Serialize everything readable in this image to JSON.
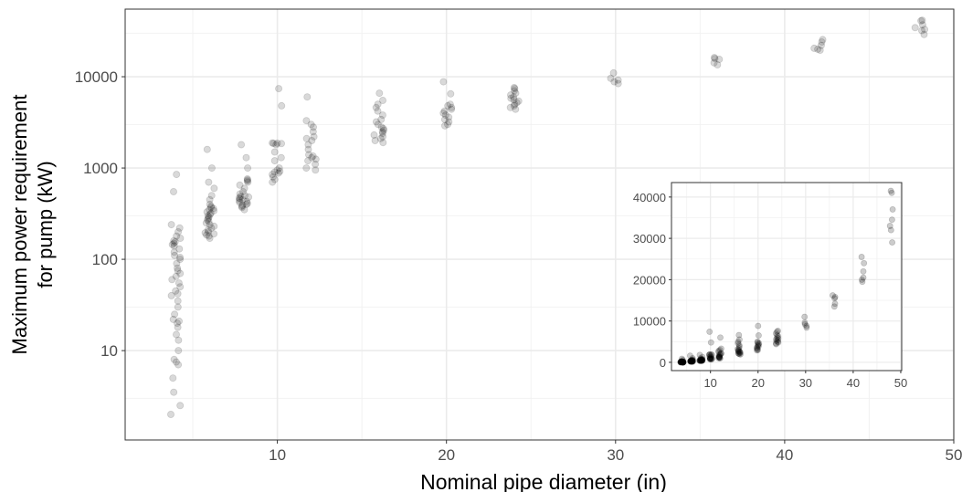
{
  "chart_data": [
    {
      "type": "scatter",
      "title": "",
      "xlabel": "Nominal pipe diameter (in)",
      "ylabel_lines": [
        "Maximum power requirement",
        "for pump (kW)"
      ],
      "xlim": [
        1,
        50
      ],
      "ylim": [
        1.05,
        55000
      ],
      "y_scale": "log",
      "x_ticks": [
        10,
        20,
        30,
        40,
        50
      ],
      "y_ticks": [
        10,
        100,
        1000,
        10000
      ],
      "y_tick_labels": [
        "10",
        "100",
        "1000",
        "10000"
      ],
      "grid": true,
      "point_color": "#000000",
      "point_alpha": 0.15,
      "groups": [
        {
          "diameter": 4,
          "values": [
            2,
            2.5,
            3.5,
            5,
            7,
            7.5,
            8,
            10,
            13,
            15,
            18,
            20,
            21,
            22,
            25,
            30,
            35,
            40,
            42,
            45,
            50,
            55,
            60,
            65,
            70,
            75,
            80,
            90,
            100,
            105,
            110,
            120,
            130,
            140,
            145,
            150,
            155,
            160,
            170,
            180,
            200,
            220,
            240,
            550,
            850
          ]
        },
        {
          "diameter": 6,
          "values": [
            170,
            180,
            185,
            190,
            195,
            200,
            210,
            220,
            230,
            240,
            250,
            260,
            270,
            280,
            290,
            300,
            310,
            320,
            330,
            340,
            350,
            360,
            370,
            380,
            400,
            450,
            500,
            600,
            700,
            1000,
            1600
          ]
        },
        {
          "diameter": 8,
          "values": [
            350,
            370,
            380,
            390,
            400,
            410,
            420,
            430,
            440,
            450,
            460,
            470,
            480,
            490,
            500,
            520,
            550,
            600,
            650,
            700,
            720,
            740,
            760,
            1000,
            1300,
            1800
          ]
        },
        {
          "diameter": 10,
          "values": [
            700,
            750,
            800,
            850,
            880,
            900,
            920,
            950,
            1000,
            1200,
            1300,
            1500,
            1800,
            1850,
            1860,
            1870,
            1880,
            4800,
            7400
          ]
        },
        {
          "diameter": 12,
          "values": [
            950,
            1000,
            1100,
            1200,
            1250,
            1300,
            1350,
            1400,
            1600,
            1800,
            2000,
            2100,
            2200,
            2500,
            2800,
            3000,
            3300,
            6000
          ]
        },
        {
          "diameter": 16,
          "values": [
            1900,
            2000,
            2100,
            2200,
            2300,
            2400,
            2500,
            2600,
            2700,
            2800,
            3000,
            3200,
            3400,
            3800,
            4200,
            4600,
            5000,
            5500,
            6600
          ]
        },
        {
          "diameter": 20,
          "values": [
            2900,
            3000,
            3200,
            3400,
            3600,
            3800,
            4000,
            4200,
            4400,
            4600,
            4800,
            5000,
            6500,
            8800
          ]
        },
        {
          "diameter": 24,
          "values": [
            4400,
            4600,
            4800,
            5000,
            5200,
            5400,
            5600,
            5800,
            6000,
            6300,
            6600,
            7000,
            7400,
            7600
          ]
        },
        {
          "diameter": 30,
          "values": [
            8400,
            8800,
            9200,
            9600,
            11000
          ]
        },
        {
          "diameter": 36,
          "values": [
            13500,
            14200,
            15500,
            15800,
            16200
          ]
        },
        {
          "diameter": 42,
          "values": [
            19500,
            20000,
            20500,
            22000,
            24000,
            25500
          ]
        },
        {
          "diameter": 48,
          "values": [
            29000,
            32000,
            33000,
            34500,
            37000,
            41000,
            41500
          ]
        }
      ]
    },
    {
      "type": "scatter",
      "title": "",
      "xlabel": "",
      "ylabel": "",
      "xlim": [
        1.8,
        50.2
      ],
      "ylim": [
        -2000,
        43500
      ],
      "y_scale": "linear",
      "x_ticks": [
        10,
        20,
        30,
        40,
        50
      ],
      "y_ticks": [
        0,
        10000,
        20000,
        30000,
        40000
      ],
      "grid": true,
      "point_color": "#000000",
      "point_alpha": 0.2,
      "series_source": "same data as main plot"
    }
  ]
}
